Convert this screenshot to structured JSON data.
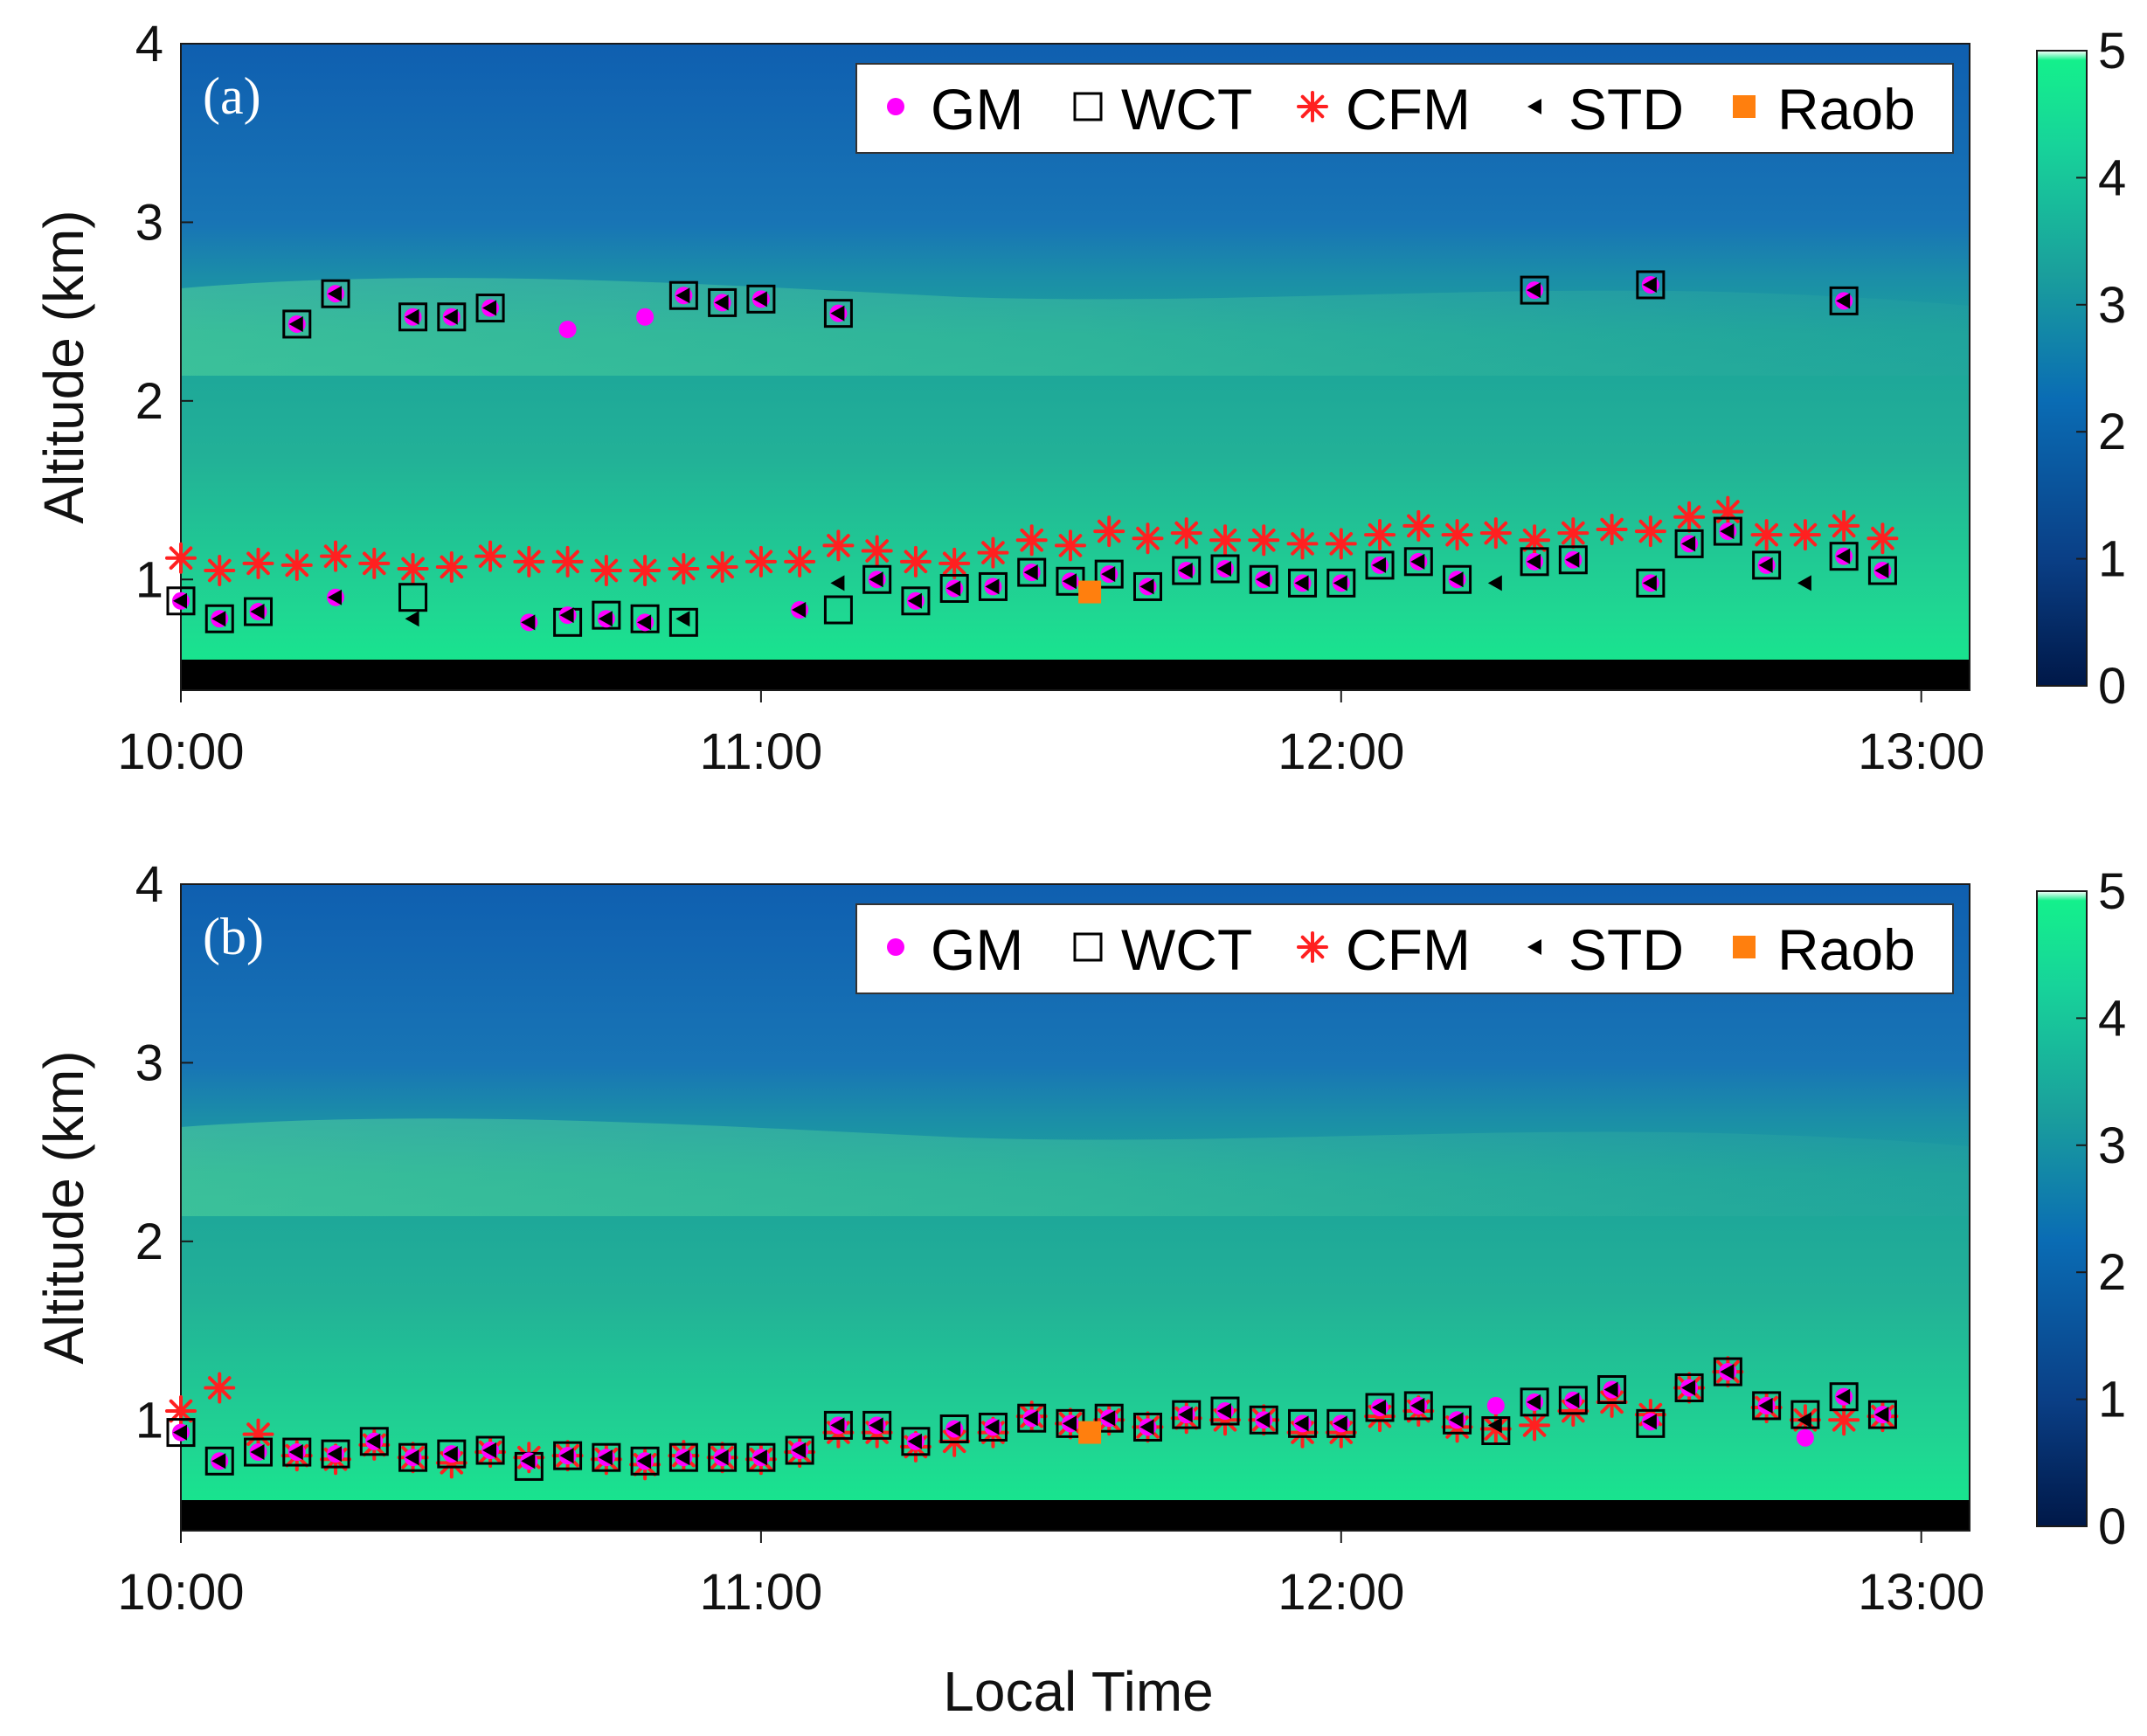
{
  "colors": {
    "gm": "#ff00ff",
    "wct": "#000000",
    "cfm": "#ff2020",
    "std": "#000000",
    "raob": "#ff7f0e",
    "colormap_low": "#001848",
    "colormap_mid": "#0a6cb4",
    "colormap_high": "#14f08c",
    "colormap_top": "#ffffff",
    "blind_zone": "#000000"
  },
  "icons": {
    "gm": "dot-icon",
    "wct": "square-icon",
    "cfm": "asterisk-icon",
    "std": "left-triangle-icon",
    "raob": "filled-square-icon"
  },
  "chart_data": [
    {
      "type": "scatter",
      "panel_label": "(a)",
      "title": "",
      "xlabel": "",
      "ylabel": "Altitude (km)",
      "xlim": [
        "10:00",
        "13:05"
      ],
      "ylim": [
        0.38,
        4.0
      ],
      "x_ticks": [
        "10:00",
        "11:00",
        "12:00",
        "13:00"
      ],
      "y_ticks": [
        "1",
        "2",
        "3",
        "4"
      ],
      "colorbar": {
        "ticks": [
          "0",
          "1",
          "2",
          "3",
          "4",
          "5"
        ],
        "range": [
          0,
          5
        ]
      },
      "legend": {
        "position": "top-right",
        "entries": [
          "GM",
          "WCT",
          "CFM",
          "STD",
          "Raob"
        ]
      },
      "background": "lidar range-corrected signal, bright layer below ~2.6 km",
      "series": [
        {
          "name": "GM",
          "marker": "dot",
          "x": [
            "10:00",
            "10:04",
            "10:08",
            "10:12",
            "10:16",
            "10:20",
            "10:24",
            "10:28",
            "10:32",
            "10:36",
            "10:40",
            "10:44",
            "10:48",
            "10:52",
            "10:56",
            "11:00",
            "11:04",
            "11:08",
            "11:12",
            "11:16",
            "11:20",
            "11:24",
            "11:28",
            "11:32",
            "11:36",
            "11:40",
            "11:44",
            "11:48",
            "11:52",
            "11:56",
            "12:00",
            "12:04",
            "12:08",
            "12:12",
            "12:16",
            "12:20",
            "12:24",
            "12:28",
            "12:32",
            "12:36",
            "12:40",
            "12:44",
            "12:48",
            "12:52",
            "12:56",
            "13:00",
            "10:12",
            "10:16",
            "10:24",
            "10:28",
            "10:32",
            "10:40",
            "10:48",
            "10:52",
            "10:56",
            "11:00",
            "11:08",
            "12:20",
            "12:32",
            "12:52"
          ],
          "y": [
            0.88,
            0.78,
            0.82,
            null,
            0.9,
            null,
            null,
            null,
            null,
            0.76,
            0.8,
            0.78,
            0.76,
            null,
            null,
            null,
            0.83,
            null,
            1.0,
            0.88,
            0.95,
            0.96,
            1.04,
            0.99,
            1.03,
            0.96,
            1.05,
            1.06,
            1.0,
            0.98,
            0.98,
            1.08,
            1.1,
            1.0,
            null,
            1.1,
            1.11,
            null,
            0.98,
            1.2,
            1.27,
            1.08,
            null,
            1.13,
            1.05,
            null,
            2.43,
            2.6,
            2.47,
            2.47,
            2.52,
            2.4,
            2.47,
            2.59,
            2.55,
            2.57,
            2.49,
            2.62,
            2.65,
            2.56
          ]
        },
        {
          "name": "WCT",
          "marker": "open-square",
          "x": [
            "10:00",
            "10:04",
            "10:08",
            "10:24",
            "10:40",
            "10:44",
            "10:48",
            "10:52",
            "11:08",
            "11:12",
            "11:16",
            "11:20",
            "11:24",
            "11:28",
            "11:32",
            "11:36",
            "11:40",
            "11:44",
            "11:48",
            "11:52",
            "11:56",
            "12:00",
            "12:04",
            "12:08",
            "12:12",
            "12:20",
            "12:24",
            "12:32",
            "12:36",
            "12:40",
            "12:44",
            "12:52",
            "12:56",
            "10:12",
            "10:16",
            "10:24",
            "10:28",
            "10:32",
            "10:52",
            "10:56",
            "11:00",
            "11:08",
            "12:20",
            "12:32",
            "12:52"
          ],
          "y": [
            0.88,
            0.78,
            0.82,
            0.9,
            0.76,
            0.8,
            0.78,
            0.76,
            0.83,
            1.0,
            0.88,
            0.95,
            0.96,
            1.04,
            0.99,
            1.03,
            0.96,
            1.05,
            1.06,
            1.0,
            0.98,
            0.98,
            1.08,
            1.1,
            1.0,
            1.1,
            1.11,
            0.98,
            1.2,
            1.27,
            1.08,
            1.13,
            1.05,
            2.43,
            2.6,
            2.47,
            2.47,
            2.52,
            2.59,
            2.55,
            2.57,
            2.49,
            2.62,
            2.65,
            2.56
          ]
        },
        {
          "name": "CFM",
          "marker": "asterisk",
          "x": [
            "10:00",
            "10:04",
            "10:08",
            "10:12",
            "10:16",
            "10:20",
            "10:24",
            "10:28",
            "10:32",
            "10:36",
            "10:40",
            "10:44",
            "10:48",
            "10:52",
            "10:56",
            "11:00",
            "11:04",
            "11:08",
            "11:12",
            "11:16",
            "11:20",
            "11:24",
            "11:28",
            "11:32",
            "11:36",
            "11:40",
            "11:44",
            "11:48",
            "11:52",
            "11:56",
            "12:00",
            "12:04",
            "12:08",
            "12:12",
            "12:16",
            "12:20",
            "12:24",
            "12:28",
            "12:32",
            "12:36",
            "12:40",
            "12:44",
            "12:48",
            "12:52",
            "12:56",
            "13:00"
          ],
          "y": [
            1.12,
            1.05,
            1.09,
            1.08,
            1.13,
            1.09,
            1.06,
            1.07,
            1.13,
            1.1,
            1.1,
            1.05,
            1.05,
            1.06,
            1.07,
            1.1,
            1.1,
            1.19,
            1.16,
            1.1,
            1.09,
            1.15,
            1.22,
            1.19,
            1.27,
            1.23,
            1.26,
            1.22,
            1.22,
            1.2,
            1.2,
            1.25,
            1.3,
            1.25,
            1.26,
            1.22,
            1.26,
            1.28,
            1.27,
            1.35,
            1.38,
            1.25,
            1.25,
            1.3,
            1.23,
            null
          ]
        },
        {
          "name": "STD",
          "marker": "left-triangle",
          "x": [
            "10:00",
            "10:04",
            "10:08",
            "10:12",
            "10:16",
            "10:20",
            "10:24",
            "10:28",
            "10:32",
            "10:36",
            "10:40",
            "10:44",
            "10:48",
            "10:52",
            "10:56",
            "11:00",
            "11:04",
            "11:08",
            "11:12",
            "11:16",
            "11:20",
            "11:24",
            "11:28",
            "11:32",
            "11:36",
            "11:40",
            "11:44",
            "11:48",
            "11:52",
            "11:56",
            "12:00",
            "12:04",
            "12:08",
            "12:12",
            "12:16",
            "12:20",
            "12:24",
            "12:28",
            "12:32",
            "12:36",
            "12:40",
            "12:44",
            "12:48",
            "12:52",
            "12:56",
            "13:00",
            "10:12",
            "10:16",
            "10:24",
            "10:28",
            "10:32",
            "10:52",
            "10:56",
            "11:00",
            "11:08",
            "12:20",
            "12:32",
            "12:52"
          ],
          "y": [
            0.88,
            0.78,
            0.82,
            null,
            0.9,
            null,
            0.78,
            null,
            null,
            0.76,
            0.8,
            0.78,
            0.76,
            0.78,
            null,
            null,
            0.83,
            0.98,
            1.0,
            0.88,
            0.95,
            0.96,
            1.04,
            0.99,
            1.03,
            0.96,
            1.05,
            1.06,
            1.0,
            0.98,
            0.98,
            1.08,
            1.1,
            1.0,
            0.98,
            1.1,
            1.11,
            null,
            0.98,
            1.2,
            1.27,
            1.08,
            0.98,
            1.13,
            1.05,
            null,
            2.43,
            2.6,
            2.47,
            2.47,
            2.52,
            2.59,
            2.55,
            2.57,
            2.49,
            2.62,
            2.65,
            2.56
          ]
        },
        {
          "name": "Raob",
          "marker": "filled-square",
          "x": [
            "11:34"
          ],
          "y": [
            0.93
          ]
        }
      ]
    },
    {
      "type": "scatter",
      "panel_label": "(b)",
      "title": "",
      "xlabel": "Local Time",
      "ylabel": "Altitude (km)",
      "xlim": [
        "10:00",
        "13:05"
      ],
      "ylim": [
        0.38,
        4.0
      ],
      "x_ticks": [
        "10:00",
        "11:00",
        "12:00",
        "13:00"
      ],
      "y_ticks": [
        "1",
        "2",
        "3",
        "4"
      ],
      "colorbar": {
        "ticks": [
          "0",
          "1",
          "2",
          "3",
          "4",
          "5"
        ],
        "range": [
          0,
          5
        ]
      },
      "legend": {
        "position": "top-right",
        "entries": [
          "GM",
          "WCT",
          "CFM",
          "STD",
          "Raob"
        ]
      },
      "series": [
        {
          "name": "GM",
          "marker": "dot",
          "x": [
            "10:00",
            "10:04",
            "10:08",
            "10:12",
            "10:16",
            "10:20",
            "10:24",
            "10:28",
            "10:32",
            "10:36",
            "10:40",
            "10:44",
            "10:48",
            "10:52",
            "10:56",
            "11:00",
            "11:04",
            "11:08",
            "11:12",
            "11:16",
            "11:20",
            "11:24",
            "11:28",
            "11:32",
            "11:36",
            "11:40",
            "11:44",
            "11:48",
            "11:52",
            "11:56",
            "12:00",
            "12:04",
            "12:08",
            "12:12",
            "12:16",
            "12:20",
            "12:24",
            "12:28",
            "12:32",
            "12:36",
            "12:40",
            "12:44",
            "12:48",
            "12:52",
            "12:56",
            "13:00"
          ],
          "y": [
            0.93,
            0.77,
            0.82,
            0.82,
            0.81,
            0.88,
            0.79,
            0.81,
            0.83,
            0.77,
            0.8,
            0.79,
            0.77,
            0.79,
            0.79,
            0.79,
            0.83,
            0.97,
            0.97,
            0.88,
            0.95,
            0.96,
            1.01,
            0.98,
            1.01,
            0.96,
            1.03,
            1.05,
            1.0,
            0.98,
            0.98,
            1.07,
            1.08,
            1.0,
            1.08,
            1.1,
            1.11,
            1.17,
            0.99,
            1.18,
            1.27,
            1.08,
            0.9,
            1.13,
            1.03,
            null
          ]
        },
        {
          "name": "WCT",
          "marker": "open-square",
          "x": [
            "10:00",
            "10:04",
            "10:08",
            "10:12",
            "10:16",
            "10:20",
            "10:24",
            "10:28",
            "10:32",
            "10:36",
            "10:40",
            "10:44",
            "10:48",
            "10:52",
            "10:56",
            "11:00",
            "11:04",
            "11:08",
            "11:12",
            "11:16",
            "11:20",
            "11:24",
            "11:28",
            "11:32",
            "11:36",
            "11:40",
            "11:44",
            "11:48",
            "11:52",
            "11:56",
            "12:00",
            "12:04",
            "12:08",
            "12:12",
            "12:16",
            "12:20",
            "12:24",
            "12:28",
            "12:32",
            "12:36",
            "12:40",
            "12:44",
            "12:48",
            "12:52",
            "12:56",
            "13:00"
          ],
          "y": [
            0.93,
            0.77,
            0.82,
            0.82,
            0.81,
            0.88,
            0.79,
            0.81,
            0.83,
            0.74,
            0.8,
            0.79,
            0.77,
            0.79,
            0.79,
            0.79,
            0.83,
            0.97,
            0.97,
            0.88,
            0.95,
            0.96,
            1.01,
            0.98,
            1.01,
            0.96,
            1.03,
            1.05,
            1.0,
            0.98,
            0.98,
            1.07,
            1.08,
            1.0,
            0.94,
            1.1,
            1.11,
            1.17,
            0.98,
            1.18,
            1.27,
            1.08,
            1.03,
            1.13,
            1.03,
            null
          ]
        },
        {
          "name": "CFM",
          "marker": "asterisk",
          "x": [
            "10:00",
            "10:04",
            "10:08",
            "10:12",
            "10:16",
            "10:20",
            "10:24",
            "10:28",
            "10:32",
            "10:36",
            "10:40",
            "10:44",
            "10:48",
            "10:52",
            "10:56",
            "11:00",
            "11:04",
            "11:08",
            "11:12",
            "11:16",
            "11:20",
            "11:24",
            "11:28",
            "11:32",
            "11:36",
            "11:40",
            "11:44",
            "11:48",
            "11:52",
            "11:56",
            "12:00",
            "12:04",
            "12:08",
            "12:12",
            "12:16",
            "12:20",
            "12:24",
            "12:28",
            "12:32",
            "12:36",
            "12:40",
            "12:44",
            "12:48",
            "12:52",
            "12:56",
            "13:00"
          ],
          "y": [
            1.05,
            1.18,
            0.92,
            0.8,
            0.78,
            0.86,
            0.79,
            0.76,
            0.82,
            0.79,
            0.8,
            0.78,
            0.75,
            0.8,
            0.79,
            0.78,
            0.82,
            0.93,
            0.93,
            0.85,
            0.88,
            0.93,
            1.02,
            0.98,
            1.0,
            0.96,
            1.01,
            1.0,
            1.0,
            0.93,
            0.93,
            1.02,
            1.05,
            0.96,
            0.95,
            0.97,
            1.05,
            1.1,
            1.03,
            1.18,
            1.27,
            1.07,
            1.0,
            1.0,
            1.02,
            null
          ]
        },
        {
          "name": "STD",
          "marker": "left-triangle",
          "x": [
            "10:00",
            "10:04",
            "10:08",
            "10:12",
            "10:16",
            "10:20",
            "10:24",
            "10:28",
            "10:32",
            "10:36",
            "10:40",
            "10:44",
            "10:48",
            "10:52",
            "10:56",
            "11:00",
            "11:04",
            "11:08",
            "11:12",
            "11:16",
            "11:20",
            "11:24",
            "11:28",
            "11:32",
            "11:36",
            "11:40",
            "11:44",
            "11:48",
            "11:52",
            "11:56",
            "12:00",
            "12:04",
            "12:08",
            "12:12",
            "12:16",
            "12:20",
            "12:24",
            "12:28",
            "12:32",
            "12:36",
            "12:40",
            "12:44",
            "12:48",
            "12:52",
            "12:56",
            "13:00"
          ],
          "y": [
            0.93,
            0.77,
            0.82,
            0.82,
            0.81,
            0.88,
            0.79,
            0.81,
            0.83,
            0.77,
            0.8,
            0.79,
            0.77,
            0.79,
            0.79,
            0.79,
            0.83,
            0.97,
            0.97,
            0.88,
            0.95,
            0.96,
            1.01,
            0.98,
            1.01,
            0.96,
            1.03,
            1.05,
            1.0,
            0.98,
            0.98,
            1.07,
            1.08,
            1.0,
            0.97,
            1.1,
            1.11,
            1.17,
            0.99,
            1.18,
            1.27,
            1.08,
            1.0,
            1.13,
            1.03,
            null
          ]
        },
        {
          "name": "Raob",
          "marker": "filled-square",
          "x": [
            "11:34"
          ],
          "y": [
            0.93
          ]
        }
      ]
    }
  ]
}
